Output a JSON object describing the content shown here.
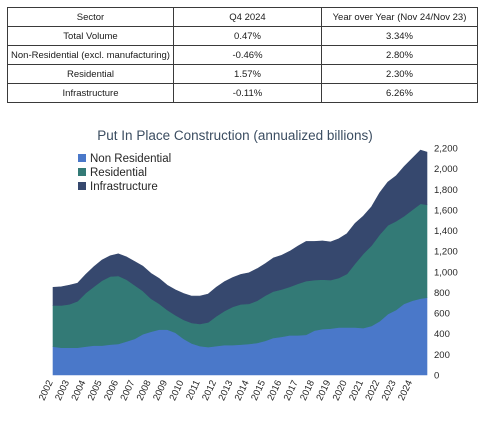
{
  "table": {
    "headers": [
      "Sector",
      "Q4 2024",
      "Year over Year (Nov 24/Nov 23)"
    ],
    "rows": [
      [
        "Total Volume",
        "0.47%",
        "3.34%"
      ],
      [
        "Non-Residential (excl. manufacturing)",
        "-0.46%",
        "2.80%"
      ],
      [
        "Residential",
        "1.57%",
        "2.30%"
      ],
      [
        "Infrastructure",
        "-0.11%",
        "6.26%"
      ]
    ]
  },
  "chart_data": {
    "type": "area",
    "stacked": true,
    "title": "Put In Place Construction (annualized billions)",
    "xlabel": "",
    "ylabel": "",
    "ylim": [
      0,
      2200
    ],
    "y_ticks": [
      "0",
      "200",
      "400",
      "600",
      "800",
      "1,000",
      "1,200",
      "1,400",
      "1,600",
      "1,800",
      "2,000",
      "2,200"
    ],
    "x_ticks": [
      "2002",
      "2003",
      "2004",
      "2005",
      "2006",
      "2007",
      "2008",
      "2009",
      "2010",
      "2011",
      "2012",
      "2013",
      "2014",
      "2015",
      "2016",
      "2017",
      "2018",
      "2019",
      "2020",
      "2021",
      "2022",
      "2023",
      "2024"
    ],
    "x_range": [
      2002.0,
      2024.9
    ],
    "legend_position": "top-left",
    "grid": false,
    "series": [
      {
        "name": "Non Residential",
        "color": "#4a78c9",
        "x": [
          2002.0,
          2002.5,
          2003.0,
          2003.5,
          2004.0,
          2004.5,
          2005.0,
          2005.5,
          2006.0,
          2006.5,
          2007.0,
          2007.5,
          2008.0,
          2008.5,
          2009.0,
          2009.5,
          2010.0,
          2010.5,
          2011.0,
          2011.5,
          2012.0,
          2012.5,
          2013.0,
          2013.5,
          2014.0,
          2014.5,
          2015.0,
          2015.5,
          2016.0,
          2016.5,
          2017.0,
          2017.5,
          2018.0,
          2018.5,
          2019.0,
          2019.5,
          2020.0,
          2020.5,
          2021.0,
          2021.5,
          2022.0,
          2022.5,
          2023.0,
          2023.5,
          2024.0,
          2024.5,
          2024.9
        ],
        "values": [
          275,
          265,
          265,
          265,
          275,
          285,
          285,
          295,
          300,
          325,
          350,
          395,
          420,
          440,
          440,
          410,
          350,
          305,
          280,
          270,
          280,
          290,
          290,
          295,
          300,
          310,
          330,
          360,
          370,
          385,
          385,
          390,
          430,
          445,
          450,
          460,
          460,
          460,
          455,
          475,
          520,
          590,
          630,
          690,
          720,
          740,
          750
        ]
      },
      {
        "name": "Residential",
        "color": "#337a76",
        "x": [
          2002.0,
          2002.5,
          2003.0,
          2003.5,
          2004.0,
          2004.5,
          2005.0,
          2005.5,
          2006.0,
          2006.5,
          2007.0,
          2007.5,
          2008.0,
          2008.5,
          2009.0,
          2009.5,
          2010.0,
          2010.5,
          2011.0,
          2011.5,
          2012.0,
          2012.5,
          2013.0,
          2013.5,
          2014.0,
          2014.5,
          2015.0,
          2015.5,
          2016.0,
          2016.5,
          2017.0,
          2017.5,
          2018.0,
          2018.5,
          2019.0,
          2019.5,
          2020.0,
          2020.5,
          2021.0,
          2021.5,
          2022.0,
          2022.5,
          2023.0,
          2023.5,
          2024.0,
          2024.5,
          2024.9
        ],
        "values": [
          400,
          410,
          420,
          450,
          520,
          570,
          630,
          660,
          660,
          600,
          520,
          420,
          320,
          250,
          190,
          170,
          185,
          200,
          215,
          240,
          290,
          330,
          370,
          390,
          390,
          410,
          440,
          450,
          460,
          470,
          500,
          520,
          490,
          480,
          470,
          480,
          520,
          620,
          720,
          780,
          840,
          860,
          860,
          850,
          880,
          920,
          900
        ]
      },
      {
        "name": "Infrastructure",
        "color": "#36486e",
        "x": [
          2002.0,
          2002.5,
          2003.0,
          2003.5,
          2004.0,
          2004.5,
          2005.0,
          2005.5,
          2006.0,
          2006.5,
          2007.0,
          2007.5,
          2008.0,
          2008.5,
          2009.0,
          2009.5,
          2010.0,
          2010.5,
          2011.0,
          2011.5,
          2012.0,
          2012.5,
          2013.0,
          2013.5,
          2014.0,
          2014.5,
          2015.0,
          2015.5,
          2016.0,
          2016.5,
          2017.0,
          2017.5,
          2018.0,
          2018.5,
          2019.0,
          2019.5,
          2020.0,
          2020.5,
          2021.0,
          2021.5,
          2022.0,
          2022.5,
          2023.0,
          2023.5,
          2024.0,
          2024.5,
          2024.9
        ],
        "values": [
          175,
          180,
          185,
          175,
          180,
          195,
          200,
          200,
          215,
          220,
          230,
          240,
          245,
          245,
          240,
          245,
          255,
          260,
          270,
          275,
          280,
          285,
          285,
          290,
          300,
          310,
          310,
          325,
          330,
          345,
          365,
          385,
          375,
          375,
          370,
          380,
          390,
          390,
          365,
          375,
          405,
          420,
          440,
          480,
          500,
          520,
          510
        ]
      }
    ]
  }
}
